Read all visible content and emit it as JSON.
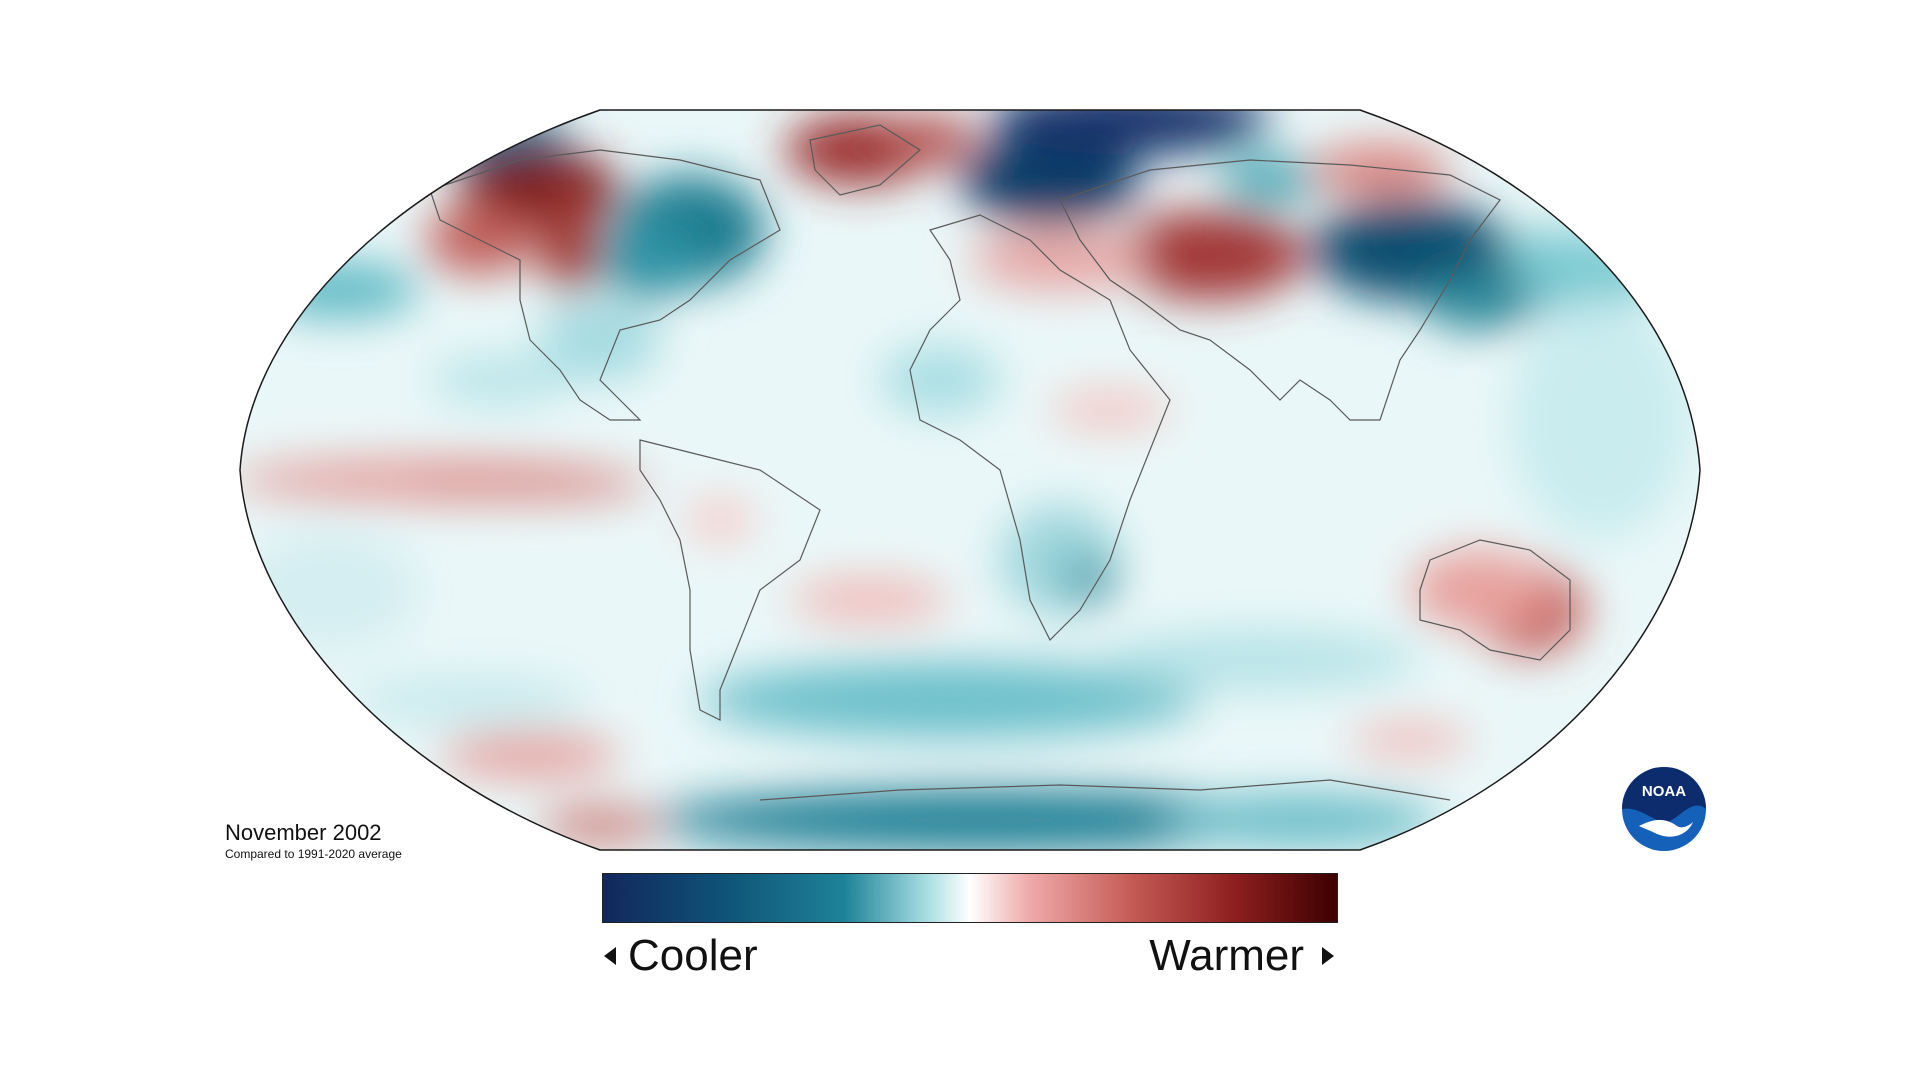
{
  "caption": {
    "title": "November 2002",
    "subtitle": "Compared to 1991-2020 average"
  },
  "legend": {
    "left_label": "Cooler",
    "right_label": "Warmer",
    "colors": [
      "#12275c",
      "#0f5478",
      "#1f8399",
      "#a6dde1",
      "#ffffff",
      "#efaaaa",
      "#c55b55",
      "#8e1f1f",
      "#3c0000"
    ]
  },
  "logo": {
    "text": "NOAA",
    "primary_color": "#1560b8",
    "accent_color": "#0d2c6e"
  },
  "map": {
    "projection": "Robinson",
    "outline_color": "#1a1a1a",
    "coast_color": "#5a5a5a",
    "anomalies": [
      {
        "region": "Alaska / NW Canada",
        "level": "warm-strong"
      },
      {
        "region": "Greenland",
        "level": "warm-strong"
      },
      {
        "region": "Eastern Canada",
        "level": "cool-strong"
      },
      {
        "region": "Scandinavia / Barents",
        "level": "cool-strong"
      },
      {
        "region": "Arctic Ocean",
        "level": "cool-strong"
      },
      {
        "region": "Western Russia / Kazakhstan",
        "level": "warm-strong"
      },
      {
        "region": "Siberia / Mongolia",
        "level": "cool-strong"
      },
      {
        "region": "Eastern Siberia",
        "level": "warm"
      },
      {
        "region": "Equatorial Pacific",
        "level": "warm"
      },
      {
        "region": "South Atlantic",
        "level": "warm"
      },
      {
        "region": "Australia",
        "level": "warm"
      },
      {
        "region": "Southern Ocean",
        "level": "cool"
      },
      {
        "region": "Antarctica",
        "level": "cool-strong"
      },
      {
        "region": "North Pacific",
        "level": "cool"
      }
    ]
  }
}
